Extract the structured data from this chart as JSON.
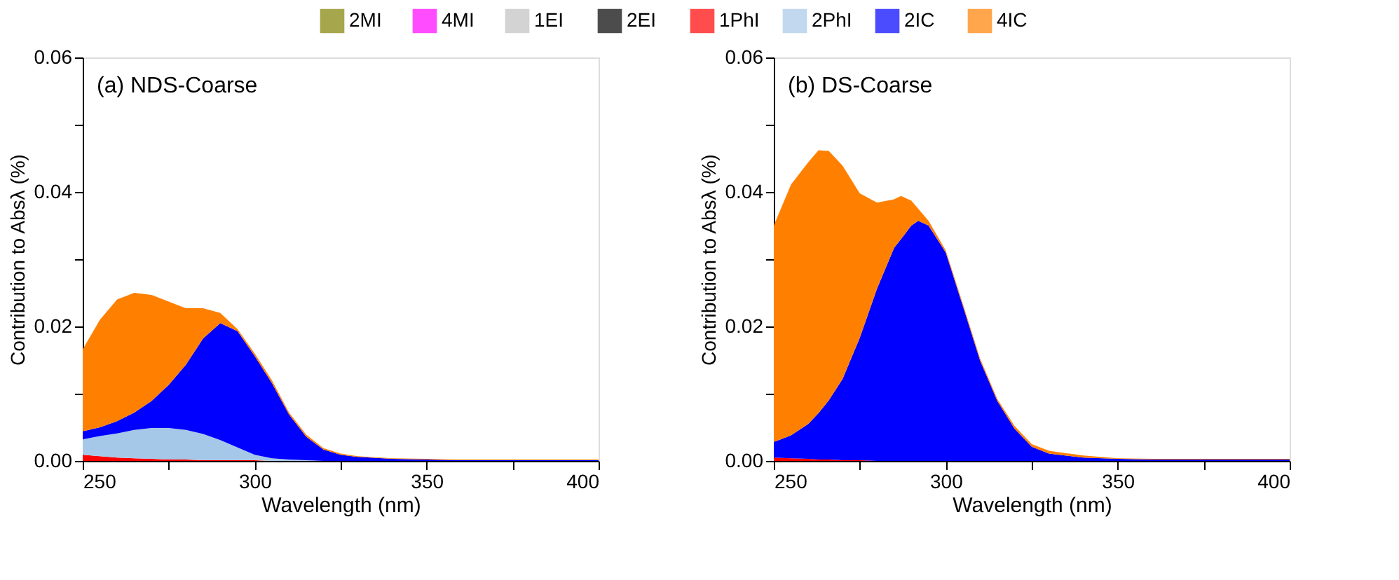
{
  "chart_data": [
    {
      "type": "area",
      "stacked": true,
      "legend": "top",
      "annotations": [
        "(a) NDS-Coarse"
      ],
      "xlabel": "Wavelength (nm)",
      "ylabel": "Contribution to Absλ (%)",
      "x": [
        250,
        255,
        260,
        265,
        270,
        275,
        280,
        285,
        290,
        295,
        300,
        305,
        310,
        315,
        320,
        325,
        330,
        340,
        350,
        360,
        380,
        400
      ],
      "xlim": [
        250,
        400
      ],
      "xticks": [
        250,
        {
          "value": 275,
          "label": null
        },
        300,
        {
          "value": 325,
          "label": null
        },
        350,
        {
          "value": 375,
          "label": null
        },
        400
      ],
      "ylim": [
        0,
        0.06
      ],
      "yticks": [
        {
          "value": 0,
          "label": "0.00"
        },
        {
          "value": 0.01,
          "label": null
        },
        {
          "value": 0.02,
          "label": "0.02"
        },
        {
          "value": 0.03,
          "label": null
        },
        {
          "value": 0.04,
          "label": "0.04"
        },
        {
          "value": 0.05,
          "label": null
        },
        {
          "value": 0.06,
          "label": "0.06"
        }
      ],
      "series": [
        {
          "name": "2MI",
          "color": "#808000",
          "values": [
            null,
            null,
            null,
            null,
            null,
            null,
            null,
            null,
            null,
            null,
            null,
            null,
            null,
            null,
            null,
            null,
            null,
            null,
            null,
            null,
            null,
            null
          ]
        },
        {
          "name": "4MI",
          "color": "#ff00ff",
          "values": [
            null,
            null,
            null,
            null,
            null,
            null,
            null,
            null,
            null,
            null,
            null,
            null,
            null,
            null,
            null,
            null,
            null,
            null,
            null,
            null,
            null,
            null
          ]
        },
        {
          "name": "1EI",
          "color": "#c0c0c0",
          "values": [
            null,
            null,
            null,
            null,
            null,
            null,
            null,
            null,
            null,
            null,
            null,
            null,
            null,
            null,
            null,
            null,
            null,
            null,
            null,
            null,
            null,
            null
          ]
        },
        {
          "name": "2EI",
          "color": "#000000",
          "values": [
            null,
            null,
            null,
            null,
            null,
            null,
            null,
            null,
            null,
            null,
            null,
            null,
            null,
            null,
            null,
            null,
            null,
            null,
            null,
            null,
            null,
            null
          ]
        },
        {
          "name": "1PhI",
          "color": "#ff0000",
          "values": [
            0.0009,
            0.0007,
            0.0005,
            0.0004,
            0.0003,
            0.0002,
            0.0002,
            0.0001,
            0.0001,
            0.0001,
            0.0001,
            0,
            0,
            0,
            0,
            0,
            0,
            0,
            0,
            0,
            0,
            0
          ]
        },
        {
          "name": "2PhI",
          "color": "#a6c8e8",
          "values": [
            0.0023,
            0.003,
            0.0036,
            0.0042,
            0.0046,
            0.0047,
            0.0044,
            0.0039,
            0.003,
            0.0019,
            0.0008,
            0.0004,
            0.0002,
            0.0001,
            0,
            0,
            0,
            0,
            0,
            0,
            0,
            0
          ]
        },
        {
          "name": "2IC",
          "color": "#0000ff",
          "values": [
            0.0012,
            0.0013,
            0.0018,
            0.0026,
            0.004,
            0.0064,
            0.0097,
            0.0142,
            0.0174,
            0.0173,
            0.0147,
            0.0112,
            0.0067,
            0.0035,
            0.0017,
            0.0009,
            0.0006,
            0.0003,
            0.0002,
            0.0001,
            0.0001,
            0.0001
          ]
        },
        {
          "name": "4IC",
          "color": "#ff8000",
          "values": [
            0.0122,
            0.016,
            0.0181,
            0.0178,
            0.0158,
            0.0124,
            0.0084,
            0.0045,
            0.0015,
            0.0003,
            0.0004,
            0.0004,
            0.0003,
            0.0003,
            0.0002,
            0.0002,
            0.0001,
            0.0001,
            0.0001,
            0.0001,
            0.0001,
            0.0001
          ]
        }
      ]
    },
    {
      "type": "area",
      "stacked": true,
      "annotations": [
        "(b) DS-Coarse"
      ],
      "xlabel": "Wavelength (nm)",
      "ylabel": "Contribution to Absλ (%)",
      "x": [
        250,
        255,
        260,
        263,
        266,
        270,
        275,
        280,
        285,
        287,
        290,
        292,
        295,
        300,
        305,
        310,
        315,
        320,
        325,
        330,
        340,
        350,
        360,
        380,
        400
      ],
      "xlim": [
        250,
        400
      ],
      "xticks": [
        250,
        {
          "value": 275,
          "label": null
        },
        300,
        {
          "value": 325,
          "label": null
        },
        350,
        {
          "value": 375,
          "label": null
        },
        400
      ],
      "ylim": [
        0,
        0.06
      ],
      "yticks": [
        {
          "value": 0,
          "label": "0.00"
        },
        {
          "value": 0.01,
          "label": null
        },
        {
          "value": 0.02,
          "label": "0.02"
        },
        {
          "value": 0.03,
          "label": null
        },
        {
          "value": 0.04,
          "label": "0.04"
        },
        {
          "value": 0.05,
          "label": null
        },
        {
          "value": 0.06,
          "label": "0.06"
        }
      ],
      "series": [
        {
          "color": "#ff0000",
          "values": [
            0.0005,
            0.0004,
            0.0003,
            0.0002,
            0.0002,
            0.0001,
            0.0001,
            0,
            0,
            0,
            0,
            0,
            0,
            0,
            0,
            0,
            0,
            0,
            0,
            0,
            0,
            0,
            0,
            0,
            0
          ]
        },
        {
          "color": "#0000ff",
          "values": [
            0.0023,
            0.0034,
            0.0052,
            0.0069,
            0.0088,
            0.0121,
            0.0182,
            0.0256,
            0.0317,
            0.033,
            0.035,
            0.0357,
            0.035,
            0.031,
            0.023,
            0.0149,
            0.0089,
            0.0048,
            0.0021,
            0.0011,
            0.0005,
            0.0003,
            0.0002,
            0.0002,
            0.0002
          ]
        },
        {
          "color": "#ff8000",
          "values": [
            0.0322,
            0.0373,
            0.0389,
            0.0391,
            0.0371,
            0.0317,
            0.0215,
            0.0128,
            0.0072,
            0.0064,
            0.0037,
            0.0018,
            0.0007,
            0.0003,
            0.0003,
            0.0003,
            0.0003,
            0.0004,
            0.0004,
            0.0004,
            0.0003,
            0.0001,
            0.0001,
            0.0001,
            0.0001
          ]
        }
      ]
    }
  ]
}
